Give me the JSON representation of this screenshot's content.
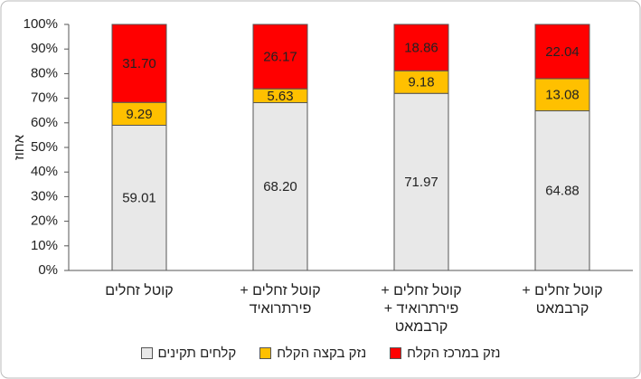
{
  "chart_data": {
    "type": "stacked_bar_100",
    "y_label": "אחוז",
    "categories": [
      "קוטל זחלים",
      "קוטל זחלים + פירתרואיד",
      "קוטל זחלים + פירתרואיד + קרבמאט",
      "קוטל זחלים + קרבמאט"
    ],
    "series": [
      {
        "name": "קלחים תקינים",
        "color": "#e8e8e8",
        "values": [
          59.01,
          68.2,
          71.97,
          64.88
        ],
        "value_labels": [
          "59.01",
          "68.20",
          "71.97",
          "64.88"
        ]
      },
      {
        "name": "נזק בקצה הקלח",
        "color": "#ffc000",
        "values": [
          9.29,
          5.63,
          9.18,
          13.08
        ],
        "value_labels": [
          "9.29",
          "5.63",
          "9.18",
          "13.08"
        ]
      },
      {
        "name": "נזק במרכז הקלח",
        "color": "#ff0000",
        "values": [
          31.7,
          26.17,
          18.86,
          22.04
        ],
        "value_labels": [
          "31.70",
          "26.17",
          "18.86",
          "22.04"
        ]
      }
    ],
    "ylim": [
      0,
      100
    ],
    "yticks": [
      {
        "value": 0,
        "label": "0%"
      },
      {
        "value": 10,
        "label": "10%"
      },
      {
        "value": 20,
        "label": "20%"
      },
      {
        "value": 30,
        "label": "30%"
      },
      {
        "value": 40,
        "label": "40%"
      },
      {
        "value": 50,
        "label": "50%"
      },
      {
        "value": 60,
        "label": "60%"
      },
      {
        "value": 70,
        "label": "70%"
      },
      {
        "value": 80,
        "label": "80%"
      },
      {
        "value": 90,
        "label": "90%"
      },
      {
        "value": 100,
        "label": "100%"
      }
    ],
    "grid": false,
    "legend": "bottom"
  }
}
